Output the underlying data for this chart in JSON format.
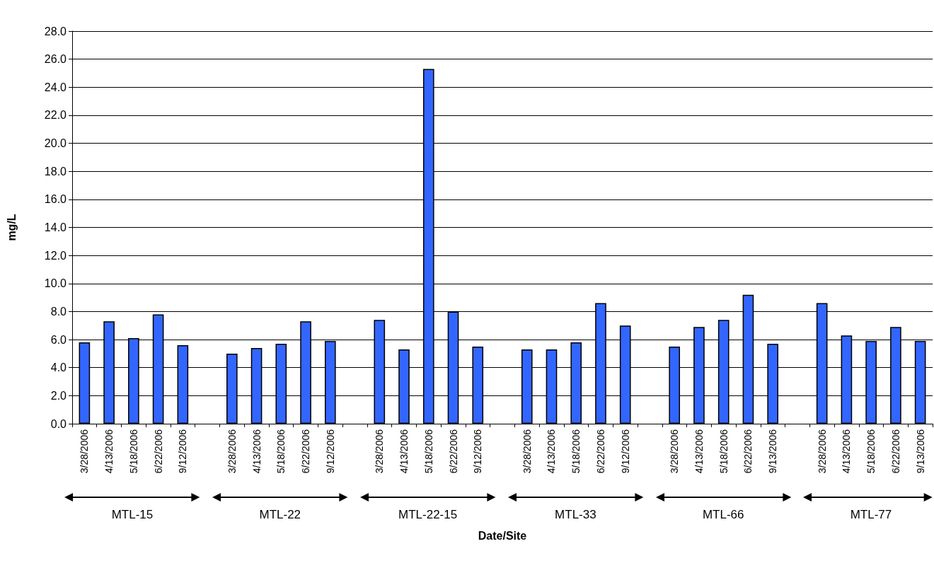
{
  "chart_data": {
    "type": "bar",
    "xlabel": "Date/Site",
    "ylabel": "mg/L",
    "categories": [
      "3/28/2006",
      "4/13/2006",
      "5/18/2006",
      "6/22/2006",
      "9/12/2006",
      null,
      "3/28/2006",
      "4/13/2006",
      "5/18/2006",
      "6/22/2006",
      "9/12/2006",
      null,
      "3/28/2006",
      "4/13/2006",
      "5/18/2006",
      "6/22/2006",
      "9/12/2006",
      null,
      "3/28/2006",
      "4/13/2006",
      "5/18/2006",
      "6/22/2006",
      "9/12/2006",
      null,
      "3/28/2006",
      "4/13/2006",
      "5/18/2006",
      "6/22/2006",
      "9/13/2006",
      null,
      "3/28/2006",
      "4/13/2006",
      "5/18/2006",
      "6/22/2006",
      "9/13/2006"
    ],
    "values": [
      5.8,
      7.3,
      6.1,
      7.8,
      5.6,
      null,
      5.0,
      5.4,
      5.7,
      7.3,
      5.9,
      null,
      7.4,
      5.3,
      25.3,
      8.0,
      5.5,
      null,
      5.3,
      5.3,
      5.8,
      8.6,
      7.0,
      null,
      5.5,
      6.9,
      7.4,
      9.2,
      5.7,
      null,
      8.6,
      6.3,
      5.9,
      6.9,
      5.9
    ],
    "color": "#3366ff",
    "ylim": [
      0,
      28
    ],
    "yticks": [
      {
        "value": 0,
        "label": "0.0"
      },
      {
        "value": 2,
        "label": "2.0"
      },
      {
        "value": 4,
        "label": "4.0"
      },
      {
        "value": 6,
        "label": "6.0"
      },
      {
        "value": 8,
        "label": "8.0"
      },
      {
        "value": 10,
        "label": "10.0"
      },
      {
        "value": 12,
        "label": "12.0"
      },
      {
        "value": 14,
        "label": "14.0"
      },
      {
        "value": 16,
        "label": "16.0"
      },
      {
        "value": 18,
        "label": "18.0"
      },
      {
        "value": 20,
        "label": "20.0"
      },
      {
        "value": 22,
        "label": "22.0"
      },
      {
        "value": 24,
        "label": "24.0"
      },
      {
        "value": 26,
        "label": "26.0"
      },
      {
        "value": 28,
        "label": "28.0"
      }
    ],
    "grid": "y",
    "annotations": [
      "MTL-15",
      "MTL-22",
      "MTL-22-15",
      "MTL-33",
      "MTL-66",
      "MTL-77"
    ]
  }
}
